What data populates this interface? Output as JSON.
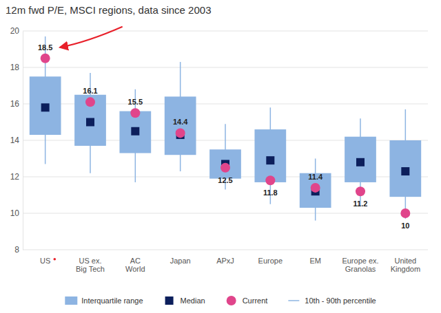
{
  "chart_data": {
    "type": "box",
    "title": "12m fwd P/E, MSCI regions, data since 2003",
    "categories": [
      "US",
      "US ex.\nBig Tech",
      "AC\nWorld",
      "Japan",
      "APxJ",
      "Europe",
      "EM",
      "Europe ex.\nGranolas",
      "United\nKingdom"
    ],
    "series": [
      {
        "name": "Interquartile range",
        "type": "box",
        "color": "#8db4e2",
        "low": [
          14.3,
          13.7,
          13.3,
          13.2,
          11.9,
          11.7,
          10.3,
          11.7,
          10.9
        ],
        "high": [
          17.5,
          16.5,
          15.6,
          16.4,
          13.5,
          14.6,
          12.2,
          14.2,
          14.0
        ]
      },
      {
        "name": "Median",
        "type": "point",
        "marker": "square",
        "color": "#0c1f5c",
        "values": [
          15.8,
          15.0,
          14.5,
          14.3,
          12.7,
          12.9,
          11.2,
          12.8,
          12.3
        ]
      },
      {
        "name": "Current",
        "type": "point",
        "marker": "circle",
        "color": "#e0458b",
        "data_labels": true,
        "values": [
          18.5,
          16.1,
          15.5,
          14.4,
          12.5,
          11.8,
          11.4,
          11.2,
          10.0
        ]
      },
      {
        "name": "10th - 90th percentile",
        "type": "whisker",
        "color": "#8db4e2",
        "low": [
          12.7,
          12.2,
          11.7,
          12.3,
          11.3,
          10.5,
          9.6,
          10.4,
          9.7
        ],
        "high": [
          19.7,
          17.7,
          16.8,
          18.3,
          14.9,
          15.8,
          13.0,
          15.2,
          15.7
        ]
      }
    ],
    "ylim": [
      8,
      20
    ],
    "yticks": [
      8,
      10,
      12,
      14,
      16,
      18,
      20
    ],
    "grid": true,
    "legend": "bottom"
  }
}
